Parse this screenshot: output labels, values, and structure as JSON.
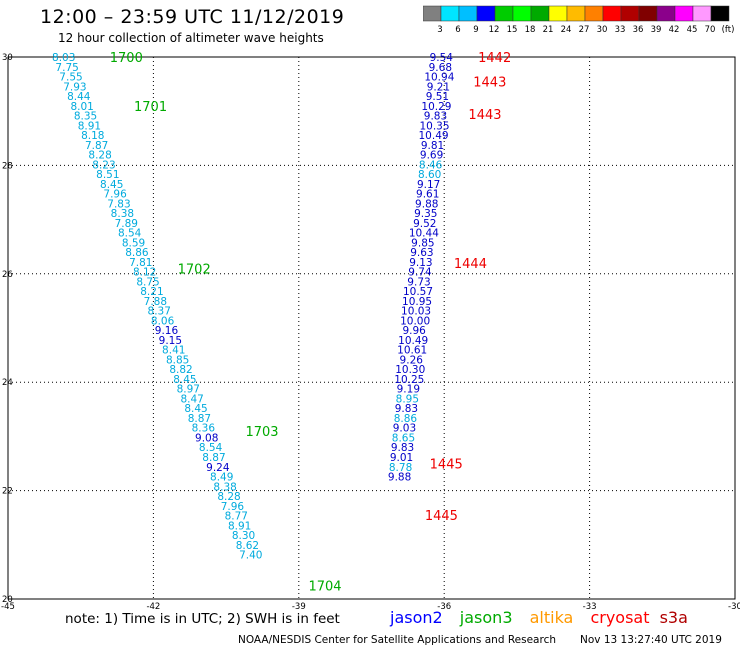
{
  "header": {
    "title": "12:00 – 23:59 UTC 11/12/2019",
    "subtitle": "12 hour collection of altimeter wave heights"
  },
  "colorbar": {
    "colors": [
      "#808080",
      "#00e5ff",
      "#00bfff",
      "#0000ff",
      "#00cc00",
      "#00ff00",
      "#00aa00",
      "#ffff00",
      "#ffbb00",
      "#ff8000",
      "#ff0000",
      "#b00000",
      "#800000",
      "#8b008b",
      "#ff00ff",
      "#ff99ff",
      "#000000"
    ],
    "labels": [
      "3",
      "6",
      "9",
      "12",
      "15",
      "18",
      "21",
      "24",
      "27",
      "30",
      "33",
      "36",
      "39",
      "42",
      "45",
      "70",
      "(ft)"
    ]
  },
  "chart_data": {
    "type": "scatter",
    "xlim": [
      -45,
      -30
    ],
    "ylim": [
      20,
      30
    ],
    "x_ticks": [
      -45,
      -42,
      -39,
      -36,
      -33,
      -30
    ],
    "y_ticks": [
      20,
      22,
      24,
      26,
      28,
      30
    ],
    "x_tick_labels": [
      "-45",
      "-42",
      "-39",
      "-36",
      "-33",
      "-30"
    ],
    "y_tick_labels": [
      "20",
      "22",
      "24",
      "26",
      "28",
      "30"
    ],
    "grid": true,
    "units": "ft",
    "series": [
      {
        "name": "jason3",
        "color": "#00aa00",
        "time_labels": [
          {
            "text": "1700",
            "lon": -42.9,
            "lat": 30.0
          },
          {
            "text": "1701",
            "lon": -42.4,
            "lat": 29.1
          },
          {
            "text": "1702",
            "lon": -41.5,
            "lat": 26.1
          },
          {
            "text": "1703",
            "lon": -40.1,
            "lat": 23.1
          },
          {
            "text": "1704",
            "lon": -38.8,
            "lat": 20.25
          }
        ],
        "points": [
          {
            "lon": -43.85,
            "lat": 30.0,
            "swh": "8.03"
          },
          {
            "lon": -43.78,
            "lat": 29.82,
            "swh": "7.75"
          },
          {
            "lon": -43.7,
            "lat": 29.64,
            "swh": "7.55"
          },
          {
            "lon": -43.62,
            "lat": 29.46,
            "swh": "7.93"
          },
          {
            "lon": -43.54,
            "lat": 29.28,
            "swh": "8.44"
          },
          {
            "lon": -43.47,
            "lat": 29.1,
            "swh": "8.01"
          },
          {
            "lon": -43.4,
            "lat": 28.92,
            "swh": "8.35"
          },
          {
            "lon": -43.32,
            "lat": 28.74,
            "swh": "8.91"
          },
          {
            "lon": -43.25,
            "lat": 28.56,
            "swh": "8.18"
          },
          {
            "lon": -43.17,
            "lat": 28.38,
            "swh": "7.87"
          },
          {
            "lon": -43.1,
            "lat": 28.2,
            "swh": "8.28"
          },
          {
            "lon": -43.02,
            "lat": 28.02,
            "swh": "8.23"
          },
          {
            "lon": -42.94,
            "lat": 27.84,
            "swh": "8.51"
          },
          {
            "lon": -42.86,
            "lat": 27.66,
            "swh": "8.45"
          },
          {
            "lon": -42.79,
            "lat": 27.48,
            "swh": "7.96"
          },
          {
            "lon": -42.71,
            "lat": 27.3,
            "swh": "7.83"
          },
          {
            "lon": -42.64,
            "lat": 27.12,
            "swh": "8.38"
          },
          {
            "lon": -42.56,
            "lat": 26.94,
            "swh": "7.89"
          },
          {
            "lon": -42.49,
            "lat": 26.76,
            "swh": "8.54"
          },
          {
            "lon": -42.41,
            "lat": 26.58,
            "swh": "8.59"
          },
          {
            "lon": -42.34,
            "lat": 26.4,
            "swh": "8.86"
          },
          {
            "lon": -42.26,
            "lat": 26.22,
            "swh": "7.81"
          },
          {
            "lon": -42.18,
            "lat": 26.04,
            "swh": "8.12"
          },
          {
            "lon": -42.11,
            "lat": 25.86,
            "swh": "8.75"
          },
          {
            "lon": -42.03,
            "lat": 25.68,
            "swh": "8.21"
          },
          {
            "lon": -41.96,
            "lat": 25.5,
            "swh": "7.88"
          },
          {
            "lon": -41.88,
            "lat": 25.32,
            "swh": "8.37"
          },
          {
            "lon": -41.81,
            "lat": 25.14,
            "swh": "8.06"
          },
          {
            "lon": -41.73,
            "lat": 24.96,
            "swh": "9.16"
          },
          {
            "lon": -41.65,
            "lat": 24.78,
            "swh": "9.15"
          },
          {
            "lon": -41.58,
            "lat": 24.6,
            "swh": "8.41"
          },
          {
            "lon": -41.5,
            "lat": 24.42,
            "swh": "8.85"
          },
          {
            "lon": -41.43,
            "lat": 24.24,
            "swh": "8.82"
          },
          {
            "lon": -41.35,
            "lat": 24.06,
            "swh": "8.45"
          },
          {
            "lon": -41.28,
            "lat": 23.88,
            "swh": "8.97"
          },
          {
            "lon": -41.2,
            "lat": 23.7,
            "swh": "8.47"
          },
          {
            "lon": -41.12,
            "lat": 23.52,
            "swh": "8.45"
          },
          {
            "lon": -41.05,
            "lat": 23.34,
            "swh": "8.87"
          },
          {
            "lon": -40.97,
            "lat": 23.16,
            "swh": "8.36"
          },
          {
            "lon": -40.9,
            "lat": 22.98,
            "swh": "9.08"
          },
          {
            "lon": -40.82,
            "lat": 22.8,
            "swh": "8.54"
          },
          {
            "lon": -40.75,
            "lat": 22.62,
            "swh": "8.87"
          },
          {
            "lon": -40.67,
            "lat": 22.44,
            "swh": "9.24"
          },
          {
            "lon": -40.59,
            "lat": 22.26,
            "swh": "8.49"
          },
          {
            "lon": -40.52,
            "lat": 22.08,
            "swh": "8.38"
          },
          {
            "lon": -40.44,
            "lat": 21.9,
            "swh": "8.28"
          },
          {
            "lon": -40.37,
            "lat": 21.72,
            "swh": "7.96"
          },
          {
            "lon": -40.29,
            "lat": 21.54,
            "swh": "8.77"
          },
          {
            "lon": -40.22,
            "lat": 21.36,
            "swh": "8.91"
          },
          {
            "lon": -40.14,
            "lat": 21.18,
            "swh": "8.30"
          },
          {
            "lon": -40.06,
            "lat": 21.0,
            "swh": "8.62"
          },
          {
            "lon": -39.99,
            "lat": 20.82,
            "swh": "7.40"
          }
        ]
      },
      {
        "name": "jason2",
        "color": "#0000ff",
        "time_labels": [
          {
            "text": "1442",
            "lon": -35.3,
            "lat": 30.0
          },
          {
            "text": "1443",
            "lon": -35.4,
            "lat": 29.55
          },
          {
            "text": "1443",
            "lon": -35.5,
            "lat": 28.95
          },
          {
            "text": "1444",
            "lon": -35.8,
            "lat": 26.2
          },
          {
            "text": "1445",
            "lon": -36.3,
            "lat": 22.5
          },
          {
            "text": "1445",
            "lon": -36.4,
            "lat": 21.55
          }
        ],
        "points": [
          {
            "lon": -36.06,
            "lat": 30.0,
            "swh": "9.54"
          },
          {
            "lon": -36.08,
            "lat": 29.82,
            "swh": "9.68"
          },
          {
            "lon": -36.1,
            "lat": 29.64,
            "swh": "10.94"
          },
          {
            "lon": -36.12,
            "lat": 29.46,
            "swh": "9.21"
          },
          {
            "lon": -36.14,
            "lat": 29.28,
            "swh": "9.51"
          },
          {
            "lon": -36.16,
            "lat": 29.1,
            "swh": "10.29"
          },
          {
            "lon": -36.18,
            "lat": 28.92,
            "swh": "9.83"
          },
          {
            "lon": -36.2,
            "lat": 28.74,
            "swh": "10.35"
          },
          {
            "lon": -36.22,
            "lat": 28.56,
            "swh": "10.49"
          },
          {
            "lon": -36.24,
            "lat": 28.38,
            "swh": "9.81"
          },
          {
            "lon": -36.26,
            "lat": 28.2,
            "swh": "9.69"
          },
          {
            "lon": -36.28,
            "lat": 28.02,
            "swh": "8.46"
          },
          {
            "lon": -36.3,
            "lat": 27.84,
            "swh": "8.60"
          },
          {
            "lon": -36.32,
            "lat": 27.66,
            "swh": "9.17"
          },
          {
            "lon": -36.34,
            "lat": 27.48,
            "swh": "9.61"
          },
          {
            "lon": -36.36,
            "lat": 27.3,
            "swh": "9.88"
          },
          {
            "lon": -36.38,
            "lat": 27.12,
            "swh": "9.35"
          },
          {
            "lon": -36.4,
            "lat": 26.94,
            "swh": "9.52"
          },
          {
            "lon": -36.42,
            "lat": 26.76,
            "swh": "10.44"
          },
          {
            "lon": -36.44,
            "lat": 26.58,
            "swh": "9.85"
          },
          {
            "lon": -36.46,
            "lat": 26.4,
            "swh": "9.63"
          },
          {
            "lon": -36.48,
            "lat": 26.22,
            "swh": "9.13"
          },
          {
            "lon": -36.5,
            "lat": 26.04,
            "swh": "9.74"
          },
          {
            "lon": -36.52,
            "lat": 25.86,
            "swh": "9.73"
          },
          {
            "lon": -36.54,
            "lat": 25.68,
            "swh": "10.57"
          },
          {
            "lon": -36.56,
            "lat": 25.5,
            "swh": "10.95"
          },
          {
            "lon": -36.58,
            "lat": 25.32,
            "swh": "10.03"
          },
          {
            "lon": -36.6,
            "lat": 25.14,
            "swh": "10.00"
          },
          {
            "lon": -36.62,
            "lat": 24.96,
            "swh": "9.96"
          },
          {
            "lon": -36.64,
            "lat": 24.78,
            "swh": "10.49"
          },
          {
            "lon": -36.66,
            "lat": 24.6,
            "swh": "10.61"
          },
          {
            "lon": -36.68,
            "lat": 24.42,
            "swh": "9.26"
          },
          {
            "lon": -36.7,
            "lat": 24.24,
            "swh": "10.30"
          },
          {
            "lon": -36.72,
            "lat": 24.06,
            "swh": "10.25"
          },
          {
            "lon": -36.74,
            "lat": 23.88,
            "swh": "9.19"
          },
          {
            "lon": -36.76,
            "lat": 23.7,
            "swh": "8.95"
          },
          {
            "lon": -36.78,
            "lat": 23.52,
            "swh": "9.83"
          },
          {
            "lon": -36.8,
            "lat": 23.34,
            "swh": "8.86"
          },
          {
            "lon": -36.82,
            "lat": 23.16,
            "swh": "9.03"
          },
          {
            "lon": -36.84,
            "lat": 22.98,
            "swh": "8.65"
          },
          {
            "lon": -36.86,
            "lat": 22.8,
            "swh": "9.83"
          },
          {
            "lon": -36.88,
            "lat": 22.62,
            "swh": "9.01"
          },
          {
            "lon": -36.9,
            "lat": 22.44,
            "swh": "8.78"
          },
          {
            "lon": -36.92,
            "lat": 22.26,
            "swh": "9.88"
          }
        ]
      }
    ],
    "legend": [
      {
        "name": "jason2",
        "color": "#0000ff"
      },
      {
        "name": "jason3",
        "color": "#00aa00"
      },
      {
        "name": "altika",
        "color": "#ff9900"
      },
      {
        "name": "cryosat",
        "color": "#ff0000"
      },
      {
        "name": "s3a",
        "color": "#b00000"
      }
    ]
  },
  "footer": {
    "note": "note: 1) Time is in UTC; 2) SWH is in feet",
    "credit": "NOAA/NESDIS Center for Satellite Applications and Research",
    "timestamp": "Nov 13 13:27:40 UTC 2019"
  }
}
